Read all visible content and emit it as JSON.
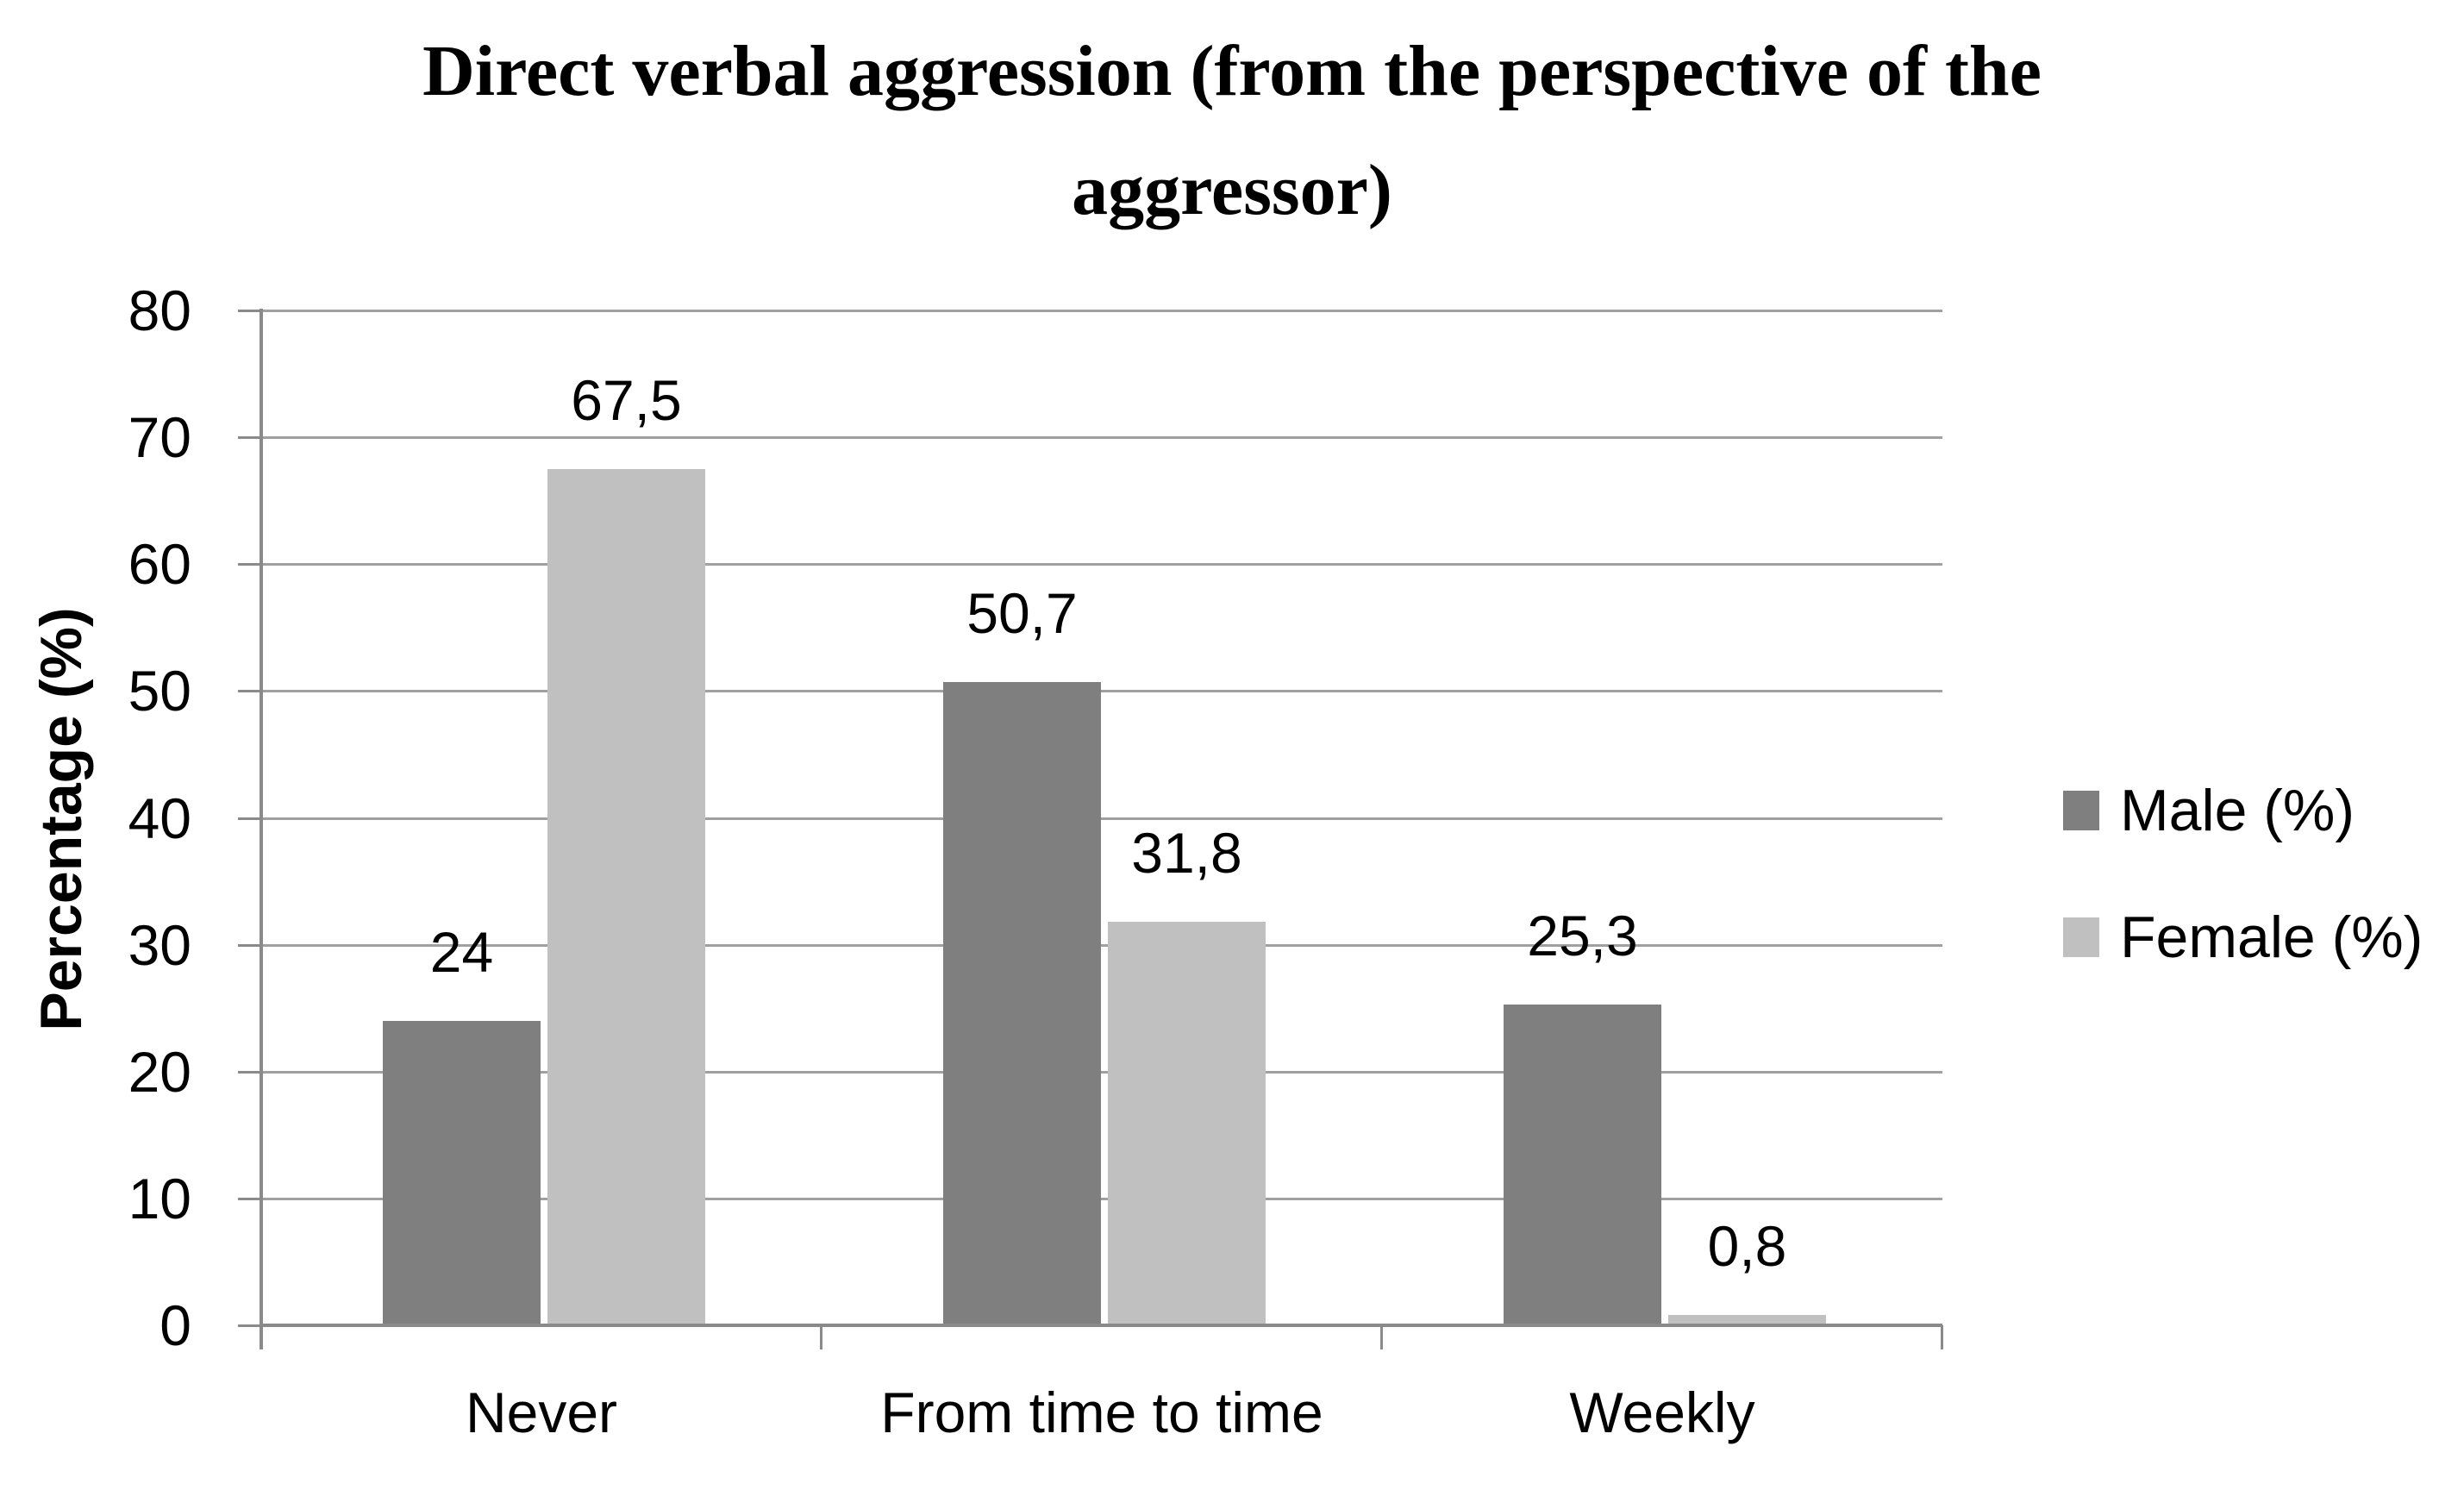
{
  "title": {
    "line1": "Direct verbal aggression (from the perspective of the",
    "line2": "aggressor)"
  },
  "chart_data": {
    "type": "bar",
    "title": "Direct verbal aggression (from the perspective of the aggressor)",
    "xlabel": "",
    "ylabel": "Percentage (%)",
    "ylim": [
      0,
      80
    ],
    "ytick_step": 10,
    "yticks": [
      0,
      10,
      20,
      30,
      40,
      50,
      60,
      70,
      80
    ],
    "grid": true,
    "legend_position": "right",
    "decimal_separator": ",",
    "categories": [
      "Never",
      "From time to time",
      "Weekly"
    ],
    "series": [
      {
        "name": "Male (%)",
        "color": "#7f7f7f",
        "values": [
          24,
          50.7,
          25.3
        ],
        "labels": [
          "24",
          "50,7",
          "25,3"
        ]
      },
      {
        "name": "Female (%)",
        "color": "#c0c0c0",
        "values": [
          67.5,
          31.8,
          0.8
        ],
        "labels": [
          "67,5",
          "31,8",
          "0,8"
        ]
      }
    ]
  },
  "colors": {
    "background": "#ffffff",
    "gridline": "#a0a0a0",
    "axis": "#8a8a8a",
    "text": "#000000"
  }
}
